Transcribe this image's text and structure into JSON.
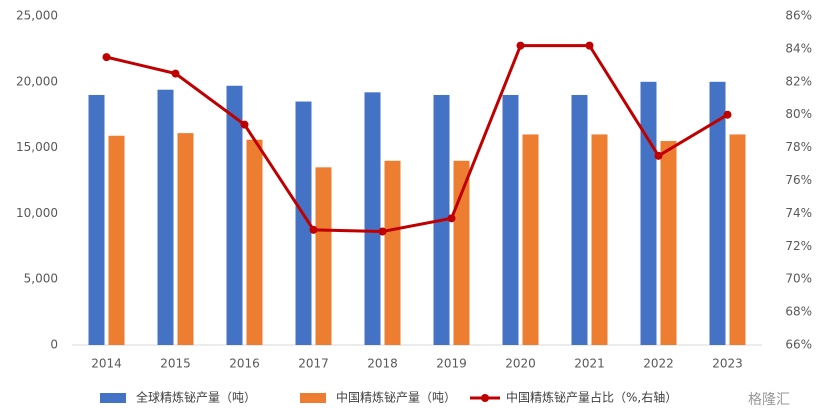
{
  "chart_data": {
    "type": "bar",
    "categories": [
      "2014",
      "2015",
      "2016",
      "2017",
      "2018",
      "2019",
      "2020",
      "2021",
      "2022",
      "2023"
    ],
    "series": [
      {
        "name": "全球精炼铋产量（吨）",
        "color": "#4472c4",
        "values": [
          19000,
          19400,
          19700,
          18500,
          19200,
          19000,
          19000,
          19000,
          20000,
          20000
        ]
      },
      {
        "name": "中国精炼铋产量（吨）",
        "color": "#ed7d31",
        "values": [
          15900,
          16100,
          15600,
          13500,
          14000,
          14000,
          16000,
          16000,
          15500,
          16000
        ]
      },
      {
        "name": "中国精炼铋产量占比（%,右轴）",
        "color": "#c00000",
        "type": "line",
        "axis": "y2",
        "values": [
          83.5,
          82.5,
          79.4,
          73.0,
          72.9,
          73.7,
          84.2,
          84.2,
          77.5,
          80.0
        ]
      }
    ],
    "ylim": [
      0,
      25000
    ],
    "yticks": [
      0,
      {
        "value": 5000,
        "label": "5,000"
      },
      {
        "value": 10000,
        "label": "10,000"
      },
      {
        "value": 15000,
        "label": "15,000"
      },
      {
        "value": 20000,
        "label": "20,000"
      },
      {
        "value": 25000,
        "label": "25,000"
      }
    ],
    "y2lim": [
      66,
      86
    ],
    "y2ticks": [
      {
        "value": 66,
        "label": "66%"
      },
      {
        "value": 68,
        "label": "68%"
      },
      {
        "value": 70,
        "label": "70%"
      },
      {
        "value": 72,
        "label": "72%"
      },
      {
        "value": 74,
        "label": "74%"
      },
      {
        "value": 76,
        "label": "76%"
      },
      {
        "value": 78,
        "label": "78%"
      },
      {
        "value": 80,
        "label": "80%"
      },
      {
        "value": 82,
        "label": "82%"
      },
      {
        "value": 84,
        "label": "84%"
      },
      {
        "value": 86,
        "label": "86%"
      }
    ],
    "legend": "bottom",
    "watermark": "格隆汇"
  }
}
